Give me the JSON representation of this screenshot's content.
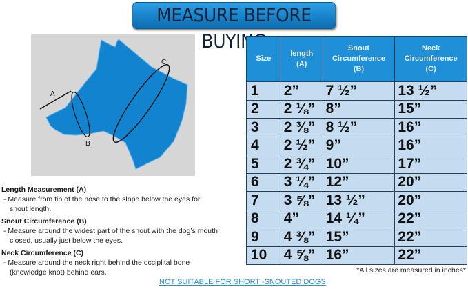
{
  "banner": {
    "title": "MEASURE BEFORE BUYING"
  },
  "diagram": {
    "labels": {
      "a": "A",
      "b": "B",
      "c": "C"
    },
    "dog_color": "#1183cf",
    "panel_color": "#d6d6d6"
  },
  "table": {
    "headers": [
      [
        "Size"
      ],
      [
        "length",
        "(A)"
      ],
      [
        "Snout",
        "Circumference",
        "(B)"
      ],
      [
        "Neck",
        "Circumference",
        "(C)"
      ]
    ],
    "rows": [
      [
        "1",
        "2”",
        "7 ½”",
        "13 ½”"
      ],
      [
        "2",
        "2 ⅛”",
        "8”",
        "15”"
      ],
      [
        "3",
        "2 ⅜”",
        "8 ½”",
        "16”"
      ],
      [
        "4",
        "2 ½”",
        "9”",
        "16”"
      ],
      [
        "5",
        "2 ¾”",
        "10”",
        "17”"
      ],
      [
        "6",
        "3 ¼”",
        "12”",
        "20”"
      ],
      [
        "7",
        "3 ⅝”",
        "13 ½”",
        "20”"
      ],
      [
        "8",
        "4”",
        "14 ¼”",
        "22”"
      ],
      [
        "9",
        "4 ⅜”",
        "15”",
        "22”"
      ],
      [
        "10",
        "4 ⅝”",
        "16”",
        "22”"
      ]
    ],
    "header_color": "#1f8fd8",
    "row_color": "#c4dbf0"
  },
  "note": "*All sizes are measured in inches*",
  "instructions": [
    {
      "title": "Length Measurement (A)",
      "lines": [
        "- Measure from tip of the nose to the slope below the eyes for",
        "snout length."
      ]
    },
    {
      "title": "Snout Circumference (B)",
      "lines": [
        "- Measure around the widest part of the snout with the dog’s mouth",
        "closed, usually just below the eyes."
      ]
    },
    {
      "title": "Neck Circumference (C)",
      "lines": [
        "- Measure around the neck right behind the occiplital bone",
        "(knowledge knot) behind ears."
      ]
    }
  ],
  "warning": "NOT SUITABLE FOR SHORT -SNOUTED DOGS"
}
